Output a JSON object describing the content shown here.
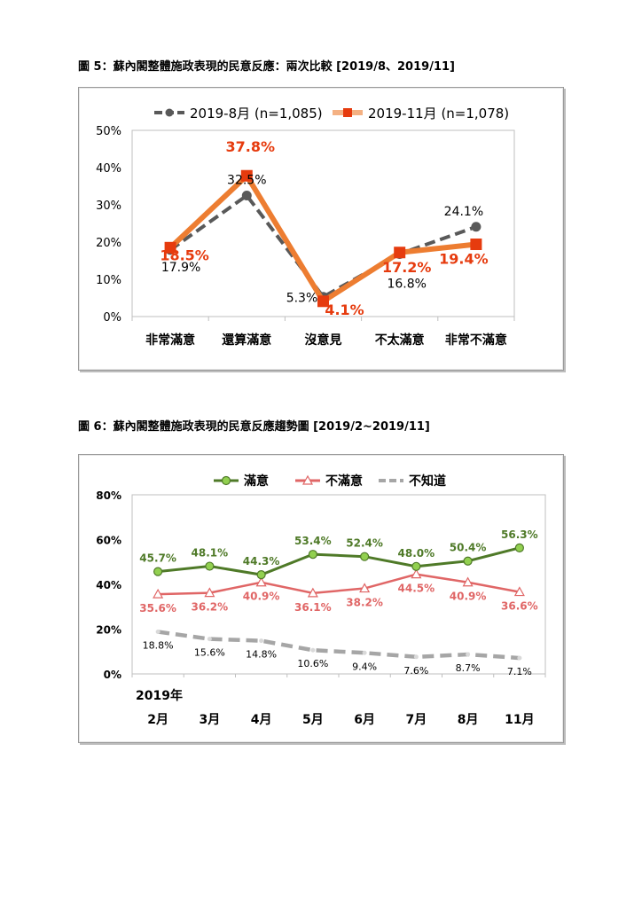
{
  "figure5": {
    "title": "圖 5：蘇內閣整體施政表現的民意反應：兩次比較  [2019/8、2019/11]",
    "chart_data": {
      "type": "line",
      "categories": [
        "非常滿意",
        "還算滿意",
        "沒意見",
        "不太滿意",
        "非常不滿意"
      ],
      "series": [
        {
          "name": "2019-8月  (n=1,085)",
          "values": [
            17.9,
            32.5,
            5.3,
            16.8,
            24.1
          ],
          "labels": [
            "17.9%",
            "32.5%",
            "5.3%",
            "16.8%",
            "24.1%"
          ],
          "color": "#595959"
        },
        {
          "name": "2019-11月  (n=1,078)",
          "values": [
            18.5,
            37.8,
            4.1,
            17.2,
            19.4
          ],
          "labels": [
            "18.5%",
            "37.8%",
            "4.1%",
            "17.2%",
            "19.4%"
          ],
          "color": "#E46C0A"
        }
      ],
      "yticks": [
        "0%",
        "10%",
        "20%",
        "30%",
        "40%",
        "50%"
      ],
      "ylim": [
        0,
        50
      ],
      "grid": false,
      "legend": "top"
    }
  },
  "figure6": {
    "title": "圖 6：蘇內閣整體施政表現的民意反應趨勢圖  [2019/2~2019/11]",
    "chart_data": {
      "type": "line",
      "year_label": "2019年",
      "categories": [
        "2月",
        "3月",
        "4月",
        "5月",
        "6月",
        "7月",
        "8月",
        "11月"
      ],
      "series": [
        {
          "name": "滿意",
          "values": [
            45.7,
            48.1,
            44.3,
            53.4,
            52.4,
            48.0,
            50.4,
            56.3
          ],
          "labels": [
            "45.7%",
            "48.1%",
            "44.3%",
            "53.4%",
            "52.4%",
            "48.0%",
            "50.4%",
            "56.3%"
          ],
          "color": "#4F7A28",
          "marker_fill": "#92D050"
        },
        {
          "name": "不滿意",
          "values": [
            35.6,
            36.2,
            40.9,
            36.1,
            38.2,
            44.5,
            40.9,
            36.6
          ],
          "labels": [
            "35.6%",
            "36.2%",
            "40.9%",
            "36.1%",
            "38.2%",
            "44.5%",
            "40.9%",
            "36.6%"
          ],
          "color": "#E06666"
        },
        {
          "name": "不知道",
          "values": [
            18.8,
            15.6,
            14.8,
            10.6,
            9.4,
            7.6,
            8.7,
            7.1
          ],
          "labels": [
            "18.8%",
            "15.6%",
            "14.8%",
            "10.6%",
            "9.4%",
            "7.6%",
            "8.7%",
            "7.1%"
          ],
          "color": "#A6A6A6"
        }
      ],
      "yticks": [
        "0%",
        "20%",
        "40%",
        "60%",
        "80%"
      ],
      "ylim": [
        0,
        80
      ],
      "grid": false,
      "legend": "top"
    }
  }
}
